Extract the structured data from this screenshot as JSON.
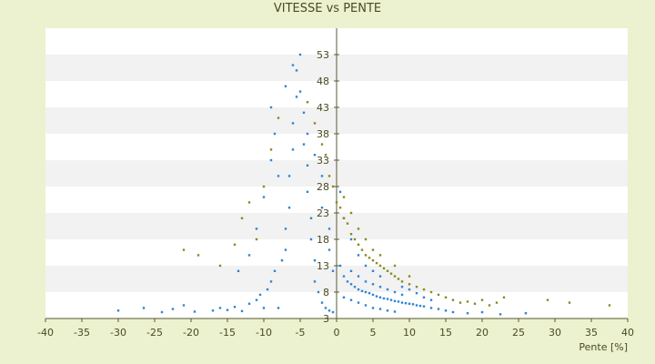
{
  "chart_data": {
    "type": "scatter",
    "title": "VITESSE vs PENTE",
    "xlabel": "Pente [%]",
    "ylabel": "",
    "xlim": [
      -40,
      40
    ],
    "ylim": [
      3,
      58
    ],
    "x_ticks": [
      "-40",
      "-35",
      "-30",
      "-25",
      "-20",
      "-15",
      "-10",
      "-5",
      "0",
      "5",
      "10",
      "15",
      "20",
      "25",
      "30",
      "35",
      "40"
    ],
    "y_ticks": [
      "3",
      "8",
      "13",
      "18",
      "23",
      "28",
      "33",
      "38",
      "43",
      "48",
      "53"
    ],
    "grid": true,
    "legend": "none",
    "colors": {
      "background": "#ecf1cf",
      "band_light": "#ffffff",
      "band_dark": "#f2f2f2",
      "series_blue": "#2e86d4",
      "series_olive": "#8a8a1e",
      "axis": "#595933"
    },
    "series": [
      {
        "color": "#2e86d4",
        "points": [
          [
            -30,
            4.5
          ],
          [
            -26.5,
            5
          ],
          [
            -24,
            4.2
          ],
          [
            -22.5,
            4.8
          ],
          [
            -21,
            5.5
          ],
          [
            -19.5,
            4.3
          ],
          [
            -17,
            4.5
          ],
          [
            -16,
            5
          ],
          [
            -15,
            4.6
          ],
          [
            -14,
            5.2
          ],
          [
            -13,
            4.4
          ],
          [
            -12,
            5.8
          ],
          [
            -11,
            6.5
          ],
          [
            -10.5,
            7.5
          ],
          [
            -10,
            5
          ],
          [
            -9.5,
            8.5
          ],
          [
            -9,
            10
          ],
          [
            -8.5,
            12
          ],
          [
            -8,
            5
          ],
          [
            -7.5,
            14
          ],
          [
            -7,
            16
          ],
          [
            -7,
            20
          ],
          [
            -6.5,
            24
          ],
          [
            -6.5,
            30
          ],
          [
            -6,
            35
          ],
          [
            -6,
            40
          ],
          [
            -5.5,
            45
          ],
          [
            -5.5,
            50
          ],
          [
            -5,
            53
          ],
          [
            -5,
            46
          ],
          [
            -4.5,
            42
          ],
          [
            -4.5,
            36
          ],
          [
            -4,
            32
          ],
          [
            -4,
            27
          ],
          [
            -3.5,
            22
          ],
          [
            -3.5,
            18
          ],
          [
            -3,
            14
          ],
          [
            -3,
            10
          ],
          [
            -2.5,
            8
          ],
          [
            -2,
            6
          ],
          [
            -1.5,
            5
          ],
          [
            -1,
            4.5
          ],
          [
            -0.5,
            4.2
          ],
          [
            -8,
            30
          ],
          [
            -8.5,
            38
          ],
          [
            -9,
            43
          ],
          [
            -7,
            47
          ],
          [
            -6,
            51
          ],
          [
            -4,
            38
          ],
          [
            -3,
            34
          ],
          [
            -2,
            30
          ],
          [
            -2,
            24
          ],
          [
            -1,
            20
          ],
          [
            -1,
            16
          ],
          [
            -0.5,
            12
          ],
          [
            -11,
            20
          ],
          [
            -12,
            15
          ],
          [
            -13.5,
            12
          ],
          [
            -10,
            26
          ],
          [
            -9,
            33
          ],
          [
            0.5,
            13
          ],
          [
            1,
            11
          ],
          [
            1.5,
            10
          ],
          [
            2,
            9.5
          ],
          [
            2.5,
            9
          ],
          [
            3,
            8.5
          ],
          [
            3.5,
            8.2
          ],
          [
            4,
            8
          ],
          [
            4.5,
            7.8
          ],
          [
            5,
            7.5
          ],
          [
            5.5,
            7.2
          ],
          [
            6,
            7
          ],
          [
            6.5,
            6.8
          ],
          [
            7,
            6.7
          ],
          [
            7.5,
            6.5
          ],
          [
            8,
            6.3
          ],
          [
            8.5,
            6.2
          ],
          [
            9,
            6
          ],
          [
            9.5,
            5.9
          ],
          [
            10,
            5.8
          ],
          [
            10.5,
            5.7
          ],
          [
            11,
            5.5
          ],
          [
            11.5,
            5.4
          ],
          [
            12,
            5.3
          ],
          [
            13,
            5
          ],
          [
            14,
            4.8
          ],
          [
            15,
            4.5
          ],
          [
            16,
            4.2
          ],
          [
            18,
            4
          ],
          [
            20,
            4.2
          ],
          [
            22.5,
            3.8
          ],
          [
            26,
            4
          ],
          [
            2,
            12
          ],
          [
            3,
            11
          ],
          [
            4,
            10
          ],
          [
            5,
            9.5
          ],
          [
            6,
            9
          ],
          [
            7,
            8.5
          ],
          [
            8,
            8
          ],
          [
            9,
            7.5
          ],
          [
            1,
            7
          ],
          [
            2,
            6.5
          ],
          [
            3,
            6
          ],
          [
            4,
            5.5
          ],
          [
            5,
            5
          ],
          [
            6,
            4.8
          ],
          [
            7,
            4.5
          ],
          [
            8,
            4.3
          ],
          [
            3,
            15
          ],
          [
            2,
            18
          ],
          [
            1,
            22
          ],
          [
            0.5,
            27
          ],
          [
            4,
            13
          ],
          [
            5,
            12
          ],
          [
            6,
            11
          ],
          [
            9,
            9
          ],
          [
            10,
            8.5
          ],
          [
            11,
            7.8
          ],
          [
            12,
            7
          ],
          [
            13,
            6.5
          ]
        ]
      },
      {
        "color": "#8a8a1e",
        "points": [
          [
            -21,
            16
          ],
          [
            -19,
            15
          ],
          [
            -16,
            13
          ],
          [
            -14,
            17
          ],
          [
            -13,
            22
          ],
          [
            -12,
            25
          ],
          [
            -11,
            18
          ],
          [
            -10,
            28
          ],
          [
            -9,
            35
          ],
          [
            -8,
            41
          ],
          [
            -4,
            44
          ],
          [
            -3,
            40
          ],
          [
            -2,
            36
          ],
          [
            -1.5,
            34
          ],
          [
            -1,
            30
          ],
          [
            -0.5,
            28
          ],
          [
            0,
            25
          ],
          [
            0.5,
            24
          ],
          [
            1,
            22
          ],
          [
            1.5,
            21
          ],
          [
            2,
            19
          ],
          [
            2.5,
            18
          ],
          [
            3,
            17
          ],
          [
            3.5,
            16
          ],
          [
            4,
            15
          ],
          [
            4.5,
            14.5
          ],
          [
            5,
            14
          ],
          [
            5.5,
            13.5
          ],
          [
            6,
            13
          ],
          [
            6.5,
            12.5
          ],
          [
            7,
            12
          ],
          [
            7.5,
            11.5
          ],
          [
            8,
            11
          ],
          [
            8.5,
            10.5
          ],
          [
            9,
            10
          ],
          [
            10,
            9.5
          ],
          [
            11,
            9
          ],
          [
            12,
            8.5
          ],
          [
            13,
            8
          ],
          [
            14,
            7.5
          ],
          [
            15,
            7
          ],
          [
            16,
            6.5
          ],
          [
            17,
            6
          ],
          [
            18,
            6.2
          ],
          [
            19,
            5.8
          ],
          [
            20,
            6.5
          ],
          [
            21,
            5.5
          ],
          [
            22,
            6
          ],
          [
            23,
            7
          ],
          [
            29,
            6.5
          ],
          [
            32,
            6
          ],
          [
            37.5,
            5.5
          ],
          [
            1,
            26
          ],
          [
            2,
            23
          ],
          [
            3,
            20
          ],
          [
            4,
            18
          ],
          [
            5,
            16
          ],
          [
            6,
            15
          ],
          [
            8,
            13
          ],
          [
            10,
            11
          ]
        ]
      }
    ]
  }
}
